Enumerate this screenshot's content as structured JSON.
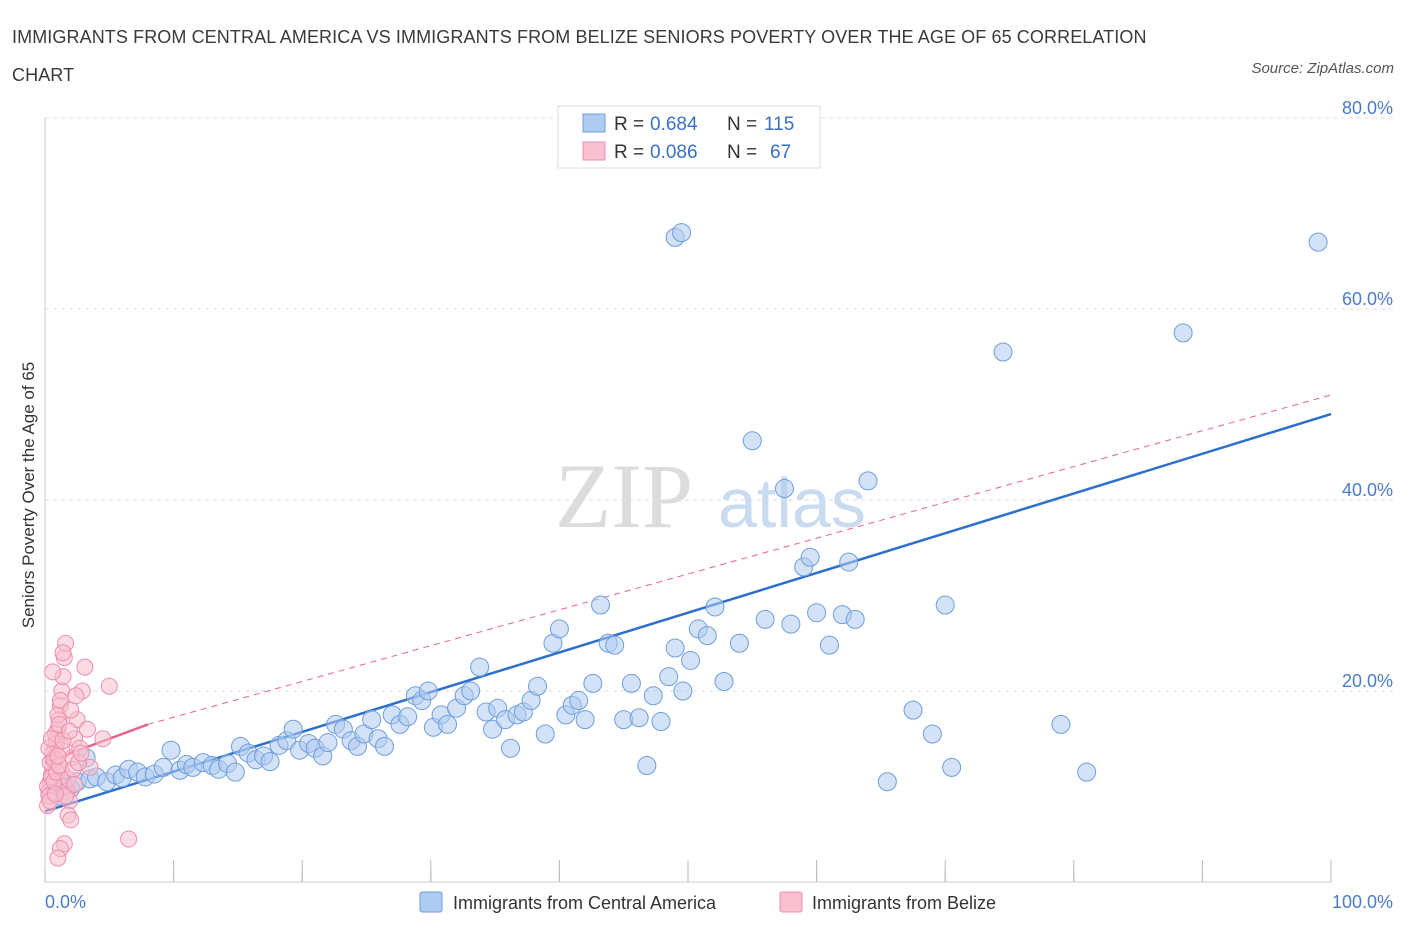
{
  "header": {
    "title": "IMMIGRANTS FROM CENTRAL AMERICA VS IMMIGRANTS FROM BELIZE SENIORS POVERTY OVER THE AGE OF 65 CORRELATION CHART",
    "source": "Source: ZipAtlas.com"
  },
  "watermark": {
    "zip": "ZIP",
    "atlas": "atlas"
  },
  "legend": {
    "series1": {
      "r_label": "R =",
      "r_value": "0.684",
      "n_label": "N =",
      "n_value": "115"
    },
    "series2": {
      "r_label": "R =",
      "r_value": "0.086",
      "n_label": "N =",
      "n_value": "67"
    }
  },
  "colors": {
    "blue_fill": "#aecbf0",
    "blue_stroke": "#6f9fdc",
    "blue_line": "#2e6fce",
    "pink_fill": "#f7bfd0",
    "pink_stroke": "#ec8fac",
    "pink_line": "#e8628b",
    "grid": "#dddddd",
    "axis_text": "#4a7cc9"
  },
  "chart_data": {
    "type": "scatter",
    "title": "IMMIGRANTS FROM CENTRAL AMERICA VS IMMIGRANTS FROM BELIZE SENIORS POVERTY OVER THE AGE OF 65 CORRELATION CHART",
    "xlabel": "",
    "ylabel": "Seniors Poverty Over the Age of 65",
    "xlim": [
      0,
      100
    ],
    "ylim": [
      0,
      80
    ],
    "x_tick_labels": [
      "0.0%",
      "100.0%"
    ],
    "y_ticks": [
      20,
      40,
      60,
      80
    ],
    "y_tick_labels": [
      "20.0%",
      "40.0%",
      "60.0%",
      "80.0%"
    ],
    "grid": true,
    "legend_position": "top-center",
    "series": [
      {
        "name": "Immigrants from Central America",
        "R": 0.684,
        "N": 115,
        "trend": {
          "x": [
            0,
            100
          ],
          "y": [
            7.4,
            49.0
          ],
          "style": "solid"
        },
        "points": [
          [
            0.8,
            9.5
          ],
          [
            1.2,
            9.0
          ],
          [
            1.5,
            10.2
          ],
          [
            2.0,
            9.8
          ],
          [
            2.5,
            10.5
          ],
          [
            3.2,
            13.0
          ],
          [
            3.5,
            10.8
          ],
          [
            4.0,
            11.0
          ],
          [
            4.8,
            10.5
          ],
          [
            5.5,
            11.2
          ],
          [
            6.0,
            10.9
          ],
          [
            6.5,
            11.8
          ],
          [
            7.2,
            11.5
          ],
          [
            7.8,
            11.0
          ],
          [
            8.5,
            11.3
          ],
          [
            9.2,
            12.0
          ],
          [
            9.8,
            13.8
          ],
          [
            10.5,
            11.7
          ],
          [
            11.0,
            12.3
          ],
          [
            11.5,
            12.0
          ],
          [
            12.3,
            12.5
          ],
          [
            13.0,
            12.2
          ],
          [
            13.5,
            11.8
          ],
          [
            14.2,
            12.4
          ],
          [
            14.8,
            11.5
          ],
          [
            15.2,
            14.2
          ],
          [
            15.8,
            13.5
          ],
          [
            16.4,
            12.8
          ],
          [
            17.0,
            13.2
          ],
          [
            17.5,
            12.6
          ],
          [
            18.2,
            14.3
          ],
          [
            18.8,
            14.8
          ],
          [
            19.3,
            16.0
          ],
          [
            19.8,
            13.8
          ],
          [
            20.5,
            14.5
          ],
          [
            21.0,
            14.0
          ],
          [
            21.6,
            13.2
          ],
          [
            22.0,
            14.6
          ],
          [
            22.6,
            16.5
          ],
          [
            23.2,
            16.0
          ],
          [
            23.8,
            14.8
          ],
          [
            24.3,
            14.2
          ],
          [
            24.8,
            15.5
          ],
          [
            25.4,
            17.0
          ],
          [
            25.9,
            15.0
          ],
          [
            26.4,
            14.2
          ],
          [
            27.0,
            17.5
          ],
          [
            27.6,
            16.5
          ],
          [
            28.2,
            17.3
          ],
          [
            28.8,
            19.5
          ],
          [
            29.3,
            19.0
          ],
          [
            29.8,
            20.0
          ],
          [
            30.2,
            16.2
          ],
          [
            30.8,
            17.5
          ],
          [
            31.3,
            16.5
          ],
          [
            32.0,
            18.2
          ],
          [
            32.6,
            19.5
          ],
          [
            33.1,
            20.0
          ],
          [
            33.8,
            22.5
          ],
          [
            34.3,
            17.8
          ],
          [
            34.8,
            16.0
          ],
          [
            35.2,
            18.2
          ],
          [
            35.8,
            17.0
          ],
          [
            36.2,
            14.0
          ],
          [
            36.7,
            17.5
          ],
          [
            37.2,
            17.8
          ],
          [
            37.8,
            19.0
          ],
          [
            38.3,
            20.5
          ],
          [
            38.9,
            15.5
          ],
          [
            39.5,
            25.0
          ],
          [
            40.0,
            26.5
          ],
          [
            40.5,
            17.5
          ],
          [
            41.0,
            18.5
          ],
          [
            41.5,
            19.0
          ],
          [
            42.0,
            17.0
          ],
          [
            42.6,
            20.8
          ],
          [
            43.2,
            29.0
          ],
          [
            43.8,
            25.0
          ],
          [
            44.3,
            24.8
          ],
          [
            45.0,
            17.0
          ],
          [
            45.6,
            20.8
          ],
          [
            46.2,
            17.2
          ],
          [
            46.8,
            12.2
          ],
          [
            47.3,
            19.5
          ],
          [
            47.9,
            16.8
          ],
          [
            48.5,
            21.5
          ],
          [
            49.0,
            24.5
          ],
          [
            49.6,
            20.0
          ],
          [
            50.2,
            23.2
          ],
          [
            50.8,
            26.5
          ],
          [
            51.5,
            25.8
          ],
          [
            52.1,
            28.8
          ],
          [
            52.8,
            21.0
          ],
          [
            54.0,
            25.0
          ],
          [
            55.0,
            46.2
          ],
          [
            56.0,
            27.5
          ],
          [
            57.5,
            41.2
          ],
          [
            58.0,
            27.0
          ],
          [
            59.0,
            33.0
          ],
          [
            59.5,
            34.0
          ],
          [
            60.0,
            28.2
          ],
          [
            61.0,
            24.8
          ],
          [
            62.0,
            28.0
          ],
          [
            62.5,
            33.5
          ],
          [
            63.0,
            27.5
          ],
          [
            64.0,
            42.0
          ],
          [
            65.5,
            10.5
          ],
          [
            67.5,
            18.0
          ],
          [
            69.0,
            15.5
          ],
          [
            70.0,
            29.0
          ],
          [
            70.5,
            12.0
          ],
          [
            74.5,
            55.5
          ],
          [
            79.0,
            16.5
          ],
          [
            81.0,
            11.5
          ],
          [
            88.5,
            57.5
          ],
          [
            49.0,
            67.5
          ],
          [
            49.5,
            68.0
          ],
          [
            99.0,
            67.0
          ]
        ]
      },
      {
        "name": "Immigrants from Belize",
        "R": 0.086,
        "N": 67,
        "trend": {
          "x": [
            0,
            8
          ],
          "y": [
            12.5,
            16.5
          ],
          "style": "solid",
          "dashed_extension_to": [
            100,
            51.0
          ]
        },
        "points": [
          [
            0.2,
            8.0
          ],
          [
            0.3,
            9.5
          ],
          [
            0.4,
            10.5
          ],
          [
            0.5,
            11.2
          ],
          [
            0.6,
            12.0
          ],
          [
            0.7,
            13.0
          ],
          [
            0.8,
            14.0
          ],
          [
            0.9,
            15.0
          ],
          [
            1.0,
            16.0
          ],
          [
            1.1,
            17.0
          ],
          [
            1.2,
            18.5
          ],
          [
            1.3,
            20.0
          ],
          [
            1.4,
            21.5
          ],
          [
            1.5,
            23.5
          ],
          [
            1.6,
            25.0
          ],
          [
            0.2,
            10.0
          ],
          [
            0.4,
            12.5
          ],
          [
            0.6,
            13.5
          ],
          [
            0.8,
            15.5
          ],
          [
            1.0,
            17.5
          ],
          [
            1.2,
            19.0
          ],
          [
            0.3,
            9.0
          ],
          [
            0.5,
            11.0
          ],
          [
            0.7,
            12.8
          ],
          [
            0.9,
            14.5
          ],
          [
            1.1,
            16.5
          ],
          [
            1.3,
            11.5
          ],
          [
            1.5,
            10.0
          ],
          [
            1.7,
            9.5
          ],
          [
            1.9,
            8.5
          ],
          [
            2.1,
            13.0
          ],
          [
            2.3,
            15.0
          ],
          [
            2.5,
            17.0
          ],
          [
            2.7,
            14.0
          ],
          [
            2.9,
            20.0
          ],
          [
            3.1,
            22.5
          ],
          [
            3.3,
            16.0
          ],
          [
            3.5,
            12.0
          ],
          [
            1.8,
            7.0
          ],
          [
            2.0,
            6.5
          ],
          [
            1.5,
            4.0
          ],
          [
            1.2,
            3.5
          ],
          [
            1.0,
            2.5
          ],
          [
            2.0,
            18.0
          ],
          [
            2.4,
            19.5
          ],
          [
            0.6,
            22.0
          ],
          [
            1.4,
            24.0
          ],
          [
            4.5,
            15.0
          ],
          [
            5.0,
            20.5
          ],
          [
            6.5,
            4.5
          ],
          [
            0.3,
            14.0
          ],
          [
            0.5,
            15.0
          ],
          [
            0.7,
            10.5
          ],
          [
            0.9,
            11.5
          ],
          [
            1.1,
            12.2
          ],
          [
            1.3,
            13.8
          ],
          [
            1.6,
            9.0
          ],
          [
            1.8,
            10.8
          ],
          [
            2.2,
            11.8
          ],
          [
            2.6,
            12.5
          ],
          [
            0.4,
            8.5
          ],
          [
            0.8,
            9.2
          ],
          [
            1.0,
            13.2
          ],
          [
            1.4,
            14.8
          ],
          [
            1.9,
            15.8
          ],
          [
            2.3,
            10.2
          ],
          [
            2.8,
            13.5
          ]
        ]
      }
    ]
  },
  "bottom_legend": {
    "items": [
      {
        "label": "Immigrants from Central America"
      },
      {
        "label": "Immigrants from Belize"
      }
    ]
  }
}
